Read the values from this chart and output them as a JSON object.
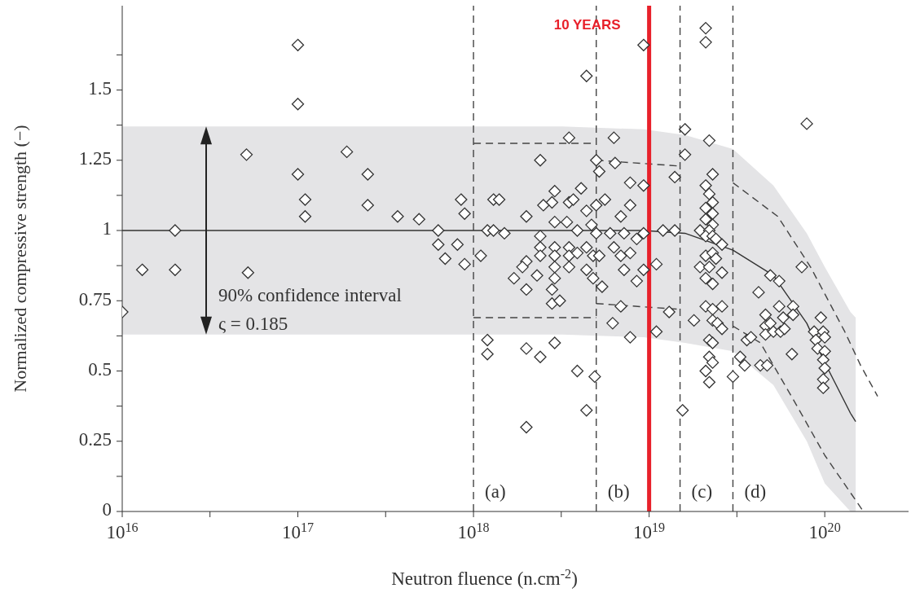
{
  "chart_data": {
    "type": "scatter",
    "xlabel": "Neutron fluence (n.cm$^{-2}$)",
    "ylabel": "Normalized compressive strength (−)",
    "log": "x",
    "grid": false,
    "legend": false,
    "xlim": [
      1e+16,
      3e+20
    ],
    "ylim": [
      0,
      1.8
    ],
    "xticks": [
      {
        "value": 1e+16,
        "label": "10$^{16}$"
      },
      {
        "value": 3.16e+16,
        "label": null
      },
      {
        "value": 1e+17,
        "label": "10$^{17}$"
      },
      {
        "value": 3.16e+17,
        "label": null
      },
      {
        "value": 1e+18,
        "label": "10$^{18}$"
      },
      {
        "value": 3.16e+18,
        "label": null
      },
      {
        "value": 1e+19,
        "label": "10$^{19}$"
      },
      {
        "value": 3.16e+19,
        "label": null
      },
      {
        "value": 1e+20,
        "label": "10$^{20}$"
      }
    ],
    "yticks": [
      0,
      {
        "value": 0.125,
        "label": null
      },
      0.25,
      {
        "value": 0.375,
        "label": null
      },
      0.5,
      {
        "value": 0.625,
        "label": null
      },
      0.75,
      {
        "value": 0.875,
        "label": null
      },
      1,
      {
        "value": 1.125,
        "label": null
      },
      1.25,
      {
        "value": 1.375,
        "label": null
      },
      1.5,
      {
        "value": 1.625,
        "label": null
      }
    ],
    "series": [
      {
        "type": "line",
        "color": "#333333",
        "marker": "none",
        "line_style": "solid",
        "x": [
          1e+16,
          3.2e+18,
          9.3e+18,
          1.6e+19,
          3e+19,
          5.1e+19,
          7.9e+19,
          1e+20,
          1.4e+20,
          1.5e+20
        ],
        "values": [
          1,
          1,
          1,
          0.99,
          0.93,
          0.84,
          0.67,
          0.53,
          0.35,
          0.32
        ],
        "lower": [
          0.63,
          0.63,
          0.62,
          0.6,
          0.57,
          0.45,
          0.25,
          0.1,
          0,
          0
        ],
        "upper": [
          1.37,
          1.37,
          1.36,
          1.34,
          1.29,
          1.16,
          0.99,
          0.87,
          0.71,
          0.69
        ]
      },
      {
        "type": "line",
        "color": "#444444",
        "marker": "none",
        "line_style": "dashed",
        "x": [
          1e+18,
          5e+18
        ],
        "values": [
          1.31,
          1.31
        ]
      },
      {
        "type": "line",
        "color": "#444444",
        "marker": "none",
        "line_style": "dashed",
        "x": [
          1e+18,
          5e+18
        ],
        "values": [
          0.69,
          0.69
        ]
      },
      {
        "type": "line",
        "color": "#444444",
        "marker": "none",
        "line_style": "dashed",
        "x": [
          5e+18,
          1.45e+19
        ],
        "values": [
          1.25,
          1.23
        ]
      },
      {
        "type": "line",
        "color": "#444444",
        "marker": "none",
        "line_style": "dashed",
        "x": [
          5e+18,
          1.45e+19
        ],
        "values": [
          0.74,
          0.72
        ]
      },
      {
        "type": "line",
        "color": "#444444",
        "marker": "none",
        "line_style": "dashed",
        "x": [
          3e+19,
          5.4e+19,
          8.3e+19,
          1.3e+20,
          1.6e+20,
          2e+20
        ],
        "values": [
          1.17,
          1.05,
          0.87,
          0.64,
          0.52,
          0.41
        ]
      },
      {
        "type": "line",
        "color": "#444444",
        "marker": "none",
        "line_style": "dashed",
        "x": [
          3e+19,
          4.3e+19,
          6.6e+19,
          1e+20,
          1.66e+20
        ],
        "values": [
          0.66,
          0.6,
          0.4,
          0.2,
          0
        ]
      },
      {
        "color": "#333333",
        "marker": "diamond",
        "x": [
          1e+16,
          1.3e+16,
          2e+16,
          2e+16,
          5.1e+16,
          5.2e+16,
          1e+17,
          1e+17,
          1e+17,
          1.1e+17,
          1.1e+17,
          1.9e+17,
          2.5e+17,
          2.5e+17,
          3.7e+17,
          4.9e+17,
          6.3e+17,
          6.3e+17,
          6.9e+17,
          8.1e+17,
          8.5e+17,
          8.9e+17,
          8.9e+17,
          9.3e+18,
          4.4e+18,
          3.5e+18,
          6.3e+18,
          2.4e+18,
          5e+18,
          5.2e+18,
          6.4e+18,
          7.8e+18,
          9.3e+18,
          1.3e+18,
          1.4e+18,
          2.9e+18,
          4.1e+18,
          5.6e+18,
          2.8e+18,
          2.5e+18,
          2e+18,
          3.5e+18,
          3.7e+18,
          5e+18,
          7.8e+18,
          1.2e+18,
          1.3e+18,
          1.5e+18,
          1.1e+18,
          2.4e+18,
          2.9e+18,
          3.4e+18,
          3.9e+18,
          4.4e+18,
          4.7e+18,
          5e+18,
          6e+18,
          6.9e+18,
          7.2e+18,
          8.5e+18,
          9.3e+18,
          2.4e+18,
          2.4e+18,
          2.9e+18,
          2.9e+18,
          2.9e+18,
          3.5e+18,
          3.5e+18,
          3.5e+18,
          3.9e+18,
          4.4e+18,
          4.4e+18,
          4.8e+18,
          5.2e+18,
          4.8e+18,
          5.4e+18,
          6.3e+18,
          6.9e+18,
          7.2e+18,
          7.8e+18,
          8.5e+18,
          9.3e+18,
          2e+18,
          1.9e+18,
          1.7e+18,
          2.3e+18,
          2e+18,
          2.9e+18,
          2.8e+18,
          2.8e+18,
          3.1e+18,
          6.9e+18,
          6.2e+18,
          7.8e+18,
          1.2e+18,
          1.2e+18,
          2e+18,
          2.4e+18,
          2.9e+18,
          3.9e+18,
          4.9e+18,
          4.4e+18,
          2e+18,
          2.1e+19,
          2.1e+19,
          7.9e+19,
          1.6e+19,
          1.6e+19,
          2.2e+19,
          1.4e+19,
          2.3e+19,
          2.1e+19,
          2.2e+19,
          2.3e+19,
          2.1e+19,
          2.3e+19,
          2.1e+19,
          2.3e+19,
          1.95e+19,
          2.2e+19,
          1.2e+19,
          1.4e+19,
          2.1e+19,
          2.3e+19,
          2.4e+19,
          2.6e+19,
          2.1e+19,
          2.3e+19,
          2.4e+19,
          1.95e+19,
          2.2e+19,
          2.6e+19,
          2.1e+19,
          2.3e+19,
          1.1e+19,
          1.3e+19,
          1.1e+19,
          1.8e+19,
          2.1e+19,
          2.3e+19,
          2.6e+19,
          2.3e+19,
          2.45e+19,
          2.6e+19,
          2.2e+19,
          2.3e+19,
          2.2e+19,
          2.3e+19,
          2.1e+19,
          2.2e+19,
          1.55e+19,
          3e+19,
          3.3e+19,
          3.5e+19,
          3.6e+19,
          3.8e+19,
          4.2e+19,
          4.3e+19,
          4.7e+19,
          4.6e+19,
          4.6e+19,
          4.6e+19,
          4.9e+19,
          5.5e+19,
          4.9e+19,
          5.1e+19,
          5.5e+19,
          5.6e+19,
          5.8e+19,
          5.9e+19,
          6.5e+19,
          6.6e+19,
          6.6e+19,
          7.4e+19,
          9.5e+19,
          8.7e+19,
          9.8e+19,
          1e+20,
          8.9e+19,
          9.1e+19,
          1e+20,
          9.8e+19,
          1e+20,
          9.8e+19,
          9.8e+19
        ],
        "values": [
          0.71,
          0.86,
          1.0,
          0.86,
          1.27,
          0.85,
          1.66,
          1.45,
          1.2,
          1.11,
          1.05,
          1.28,
          1.2,
          1.09,
          1.05,
          1.04,
          1.0,
          0.95,
          0.9,
          0.95,
          1.11,
          0.88,
          1.06,
          1.66,
          1.55,
          1.33,
          1.33,
          1.25,
          1.25,
          1.21,
          1.24,
          1.17,
          1.16,
          1.11,
          1.11,
          1.14,
          1.15,
          1.11,
          1.1,
          1.09,
          1.05,
          1.1,
          1.11,
          1.09,
          1.09,
          1.0,
          1.0,
          0.99,
          0.91,
          0.98,
          1.03,
          1.03,
          1.0,
          1.07,
          1.02,
          0.99,
          0.99,
          1.05,
          0.99,
          0.97,
          0.99,
          0.94,
          0.91,
          0.94,
          0.91,
          0.87,
          0.94,
          0.91,
          0.87,
          0.92,
          0.94,
          0.86,
          0.91,
          0.91,
          0.83,
          0.8,
          0.94,
          0.91,
          0.86,
          0.92,
          0.82,
          0.86,
          0.89,
          0.87,
          0.83,
          0.84,
          0.79,
          0.83,
          0.79,
          0.74,
          0.75,
          0.73,
          0.67,
          0.62,
          0.61,
          0.56,
          0.58,
          0.55,
          0.6,
          0.5,
          0.48,
          0.36,
          0.3,
          1.72,
          1.67,
          1.38,
          1.36,
          1.27,
          1.32,
          1.19,
          1.2,
          1.16,
          1.13,
          1.1,
          1.08,
          1.06,
          1.04,
          1.02,
          1.0,
          1.0,
          1.0,
          1.0,
          0.98,
          0.98,
          0.97,
          0.95,
          0.91,
          0.92,
          0.9,
          0.87,
          0.87,
          0.85,
          0.83,
          0.81,
          0.88,
          0.71,
          0.64,
          0.68,
          0.73,
          0.72,
          0.73,
          0.68,
          0.67,
          0.65,
          0.61,
          0.6,
          0.55,
          0.53,
          0.5,
          0.46,
          0.36,
          0.48,
          0.55,
          0.52,
          0.61,
          0.62,
          0.78,
          0.52,
          0.52,
          0.7,
          0.66,
          0.63,
          0.84,
          0.82,
          0.67,
          0.64,
          0.73,
          0.64,
          0.69,
          0.65,
          0.56,
          0.73,
          0.7,
          0.87,
          0.69,
          0.64,
          0.64,
          0.62,
          0.61,
          0.58,
          0.57,
          0.54,
          0.51,
          0.47,
          0.44
        ]
      }
    ],
    "ref_lines": [
      {
        "axis": "x",
        "value": 1e+18,
        "color": "#444444",
        "line_style": "dashed"
      },
      {
        "axis": "x",
        "value": 5e+18,
        "color": "#444444",
        "line_style": "dashed"
      },
      {
        "axis": "x",
        "value": 1.5e+19,
        "color": "#444444",
        "line_style": "dashed"
      },
      {
        "axis": "x",
        "value": 3e+19,
        "color": "#444444",
        "line_style": "dashed"
      },
      {
        "axis": "x",
        "value": 1e+19,
        "label": "10 YEARS",
        "color": "#e8202a",
        "line_style": "solid"
      }
    ],
    "annotations": [
      "90% confidence interval",
      "ς = 0.185",
      "(a)",
      "(b)",
      "(c)",
      "(d)"
    ]
  }
}
